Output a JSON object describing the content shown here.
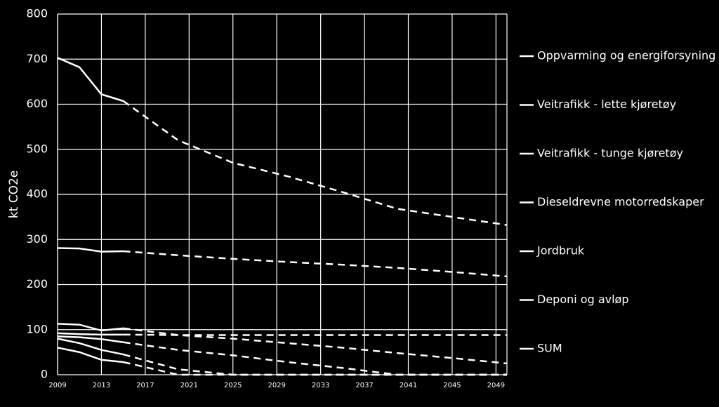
{
  "chart_data": {
    "type": "line",
    "ylabel": "kt CO2e",
    "x": [
      2009,
      2011,
      2013,
      2015,
      2020,
      2025,
      2030,
      2035,
      2040,
      2045,
      2050
    ],
    "projection_start": 2015,
    "series": [
      {
        "name": "Oppvarming og energiforsyning",
        "color": "#ffffff",
        "values": [
          113,
          111,
          98,
          103,
          88,
          80,
          70,
          60,
          48,
          37,
          25
        ]
      },
      {
        "name": "Veitrafikk - lette kjøretøy",
        "color": "#ffffff",
        "values": [
          281,
          280,
          273,
          274,
          265,
          257,
          250,
          244,
          237,
          228,
          218
        ]
      },
      {
        "name": "Veitrafikk - tunge kjøretøy",
        "color": "#ffffff",
        "values": [
          85,
          83,
          79,
          72,
          55,
          43,
          28,
          15,
          0,
          0,
          0
        ]
      },
      {
        "name": "Dieseldrevne motorredskaper",
        "color": "#ffffff",
        "values": [
          80,
          70,
          55,
          45,
          12,
          0,
          0,
          0,
          0,
          0,
          0
        ]
      },
      {
        "name": "Jordbruk",
        "color": "#ffffff",
        "values": [
          92,
          90,
          89,
          89,
          88,
          88,
          88,
          88,
          88,
          88,
          88
        ]
      },
      {
        "name": "Deponi og avløp",
        "color": "#ffffff",
        "values": [
          60,
          50,
          33,
          28,
          0,
          0,
          0,
          0,
          0,
          0,
          0
        ]
      },
      {
        "name": "SUM",
        "color": "#ffffff",
        "values": [
          703,
          682,
          622,
          607,
          520,
          470,
          440,
          405,
          368,
          350,
          332
        ]
      }
    ],
    "xlim": [
      2009,
      2050
    ],
    "ylim": [
      0,
      800
    ],
    "xticks": [
      2009,
      2013,
      2017,
      2021,
      2025,
      2029,
      2033,
      2037,
      2041,
      2045,
      2049
    ],
    "yticks": [
      0,
      100,
      200,
      300,
      400,
      500,
      600,
      700,
      800
    ],
    "grid": true,
    "legend": "right"
  }
}
